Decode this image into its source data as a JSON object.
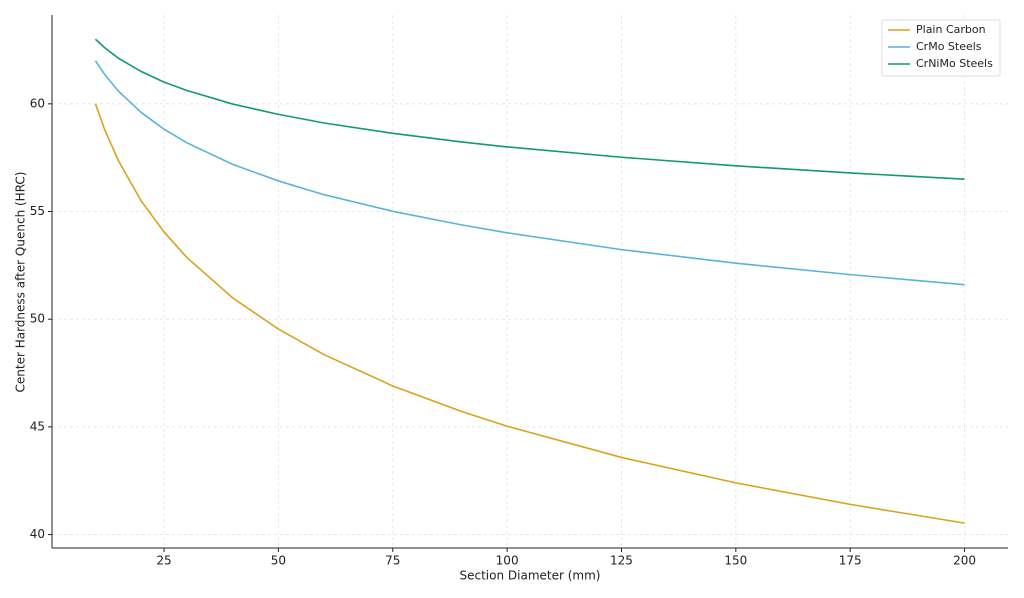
{
  "chart_data": {
    "type": "line",
    "xlabel": "Section Diameter (mm)",
    "ylabel": "Center Hardness after Quench (HRC)",
    "x": [
      10,
      12,
      15,
      20,
      25,
      30,
      40,
      50,
      60,
      75,
      90,
      100,
      125,
      150,
      175,
      200
    ],
    "series": [
      {
        "name": "Plain Carbon",
        "color": "#dba21c",
        "values": [
          60,
          58.81,
          57.37,
          55.49,
          54.05,
          52.86,
          50.99,
          49.54,
          48.35,
          46.9,
          45.72,
          45.03,
          43.58,
          42.4,
          41.4,
          40.53
        ]
      },
      {
        "name": "CrMo Steels",
        "color": "#5ab4d8",
        "values": [
          62,
          61.37,
          60.59,
          59.6,
          58.82,
          58.19,
          57.19,
          56.42,
          55.78,
          55.01,
          54.38,
          54.01,
          53.23,
          52.6,
          52.07,
          51.6
        ]
      },
      {
        "name": "CrNiMo Steels",
        "color": "#119a72",
        "values": [
          63,
          62.61,
          62.12,
          61.5,
          61.01,
          60.62,
          59.99,
          59.51,
          59.11,
          58.63,
          58.23,
          58.0,
          57.52,
          57.12,
          56.79,
          56.5
        ]
      }
    ],
    "xlim": [
      0.5,
      209.5
    ],
    "ylim": [
      39.375,
      64.125
    ],
    "xticks": [
      25,
      50,
      75,
      100,
      125,
      150,
      175,
      200
    ],
    "yticks": [
      40,
      45,
      50,
      55,
      60
    ],
    "grid": true,
    "legend": "upper right"
  }
}
